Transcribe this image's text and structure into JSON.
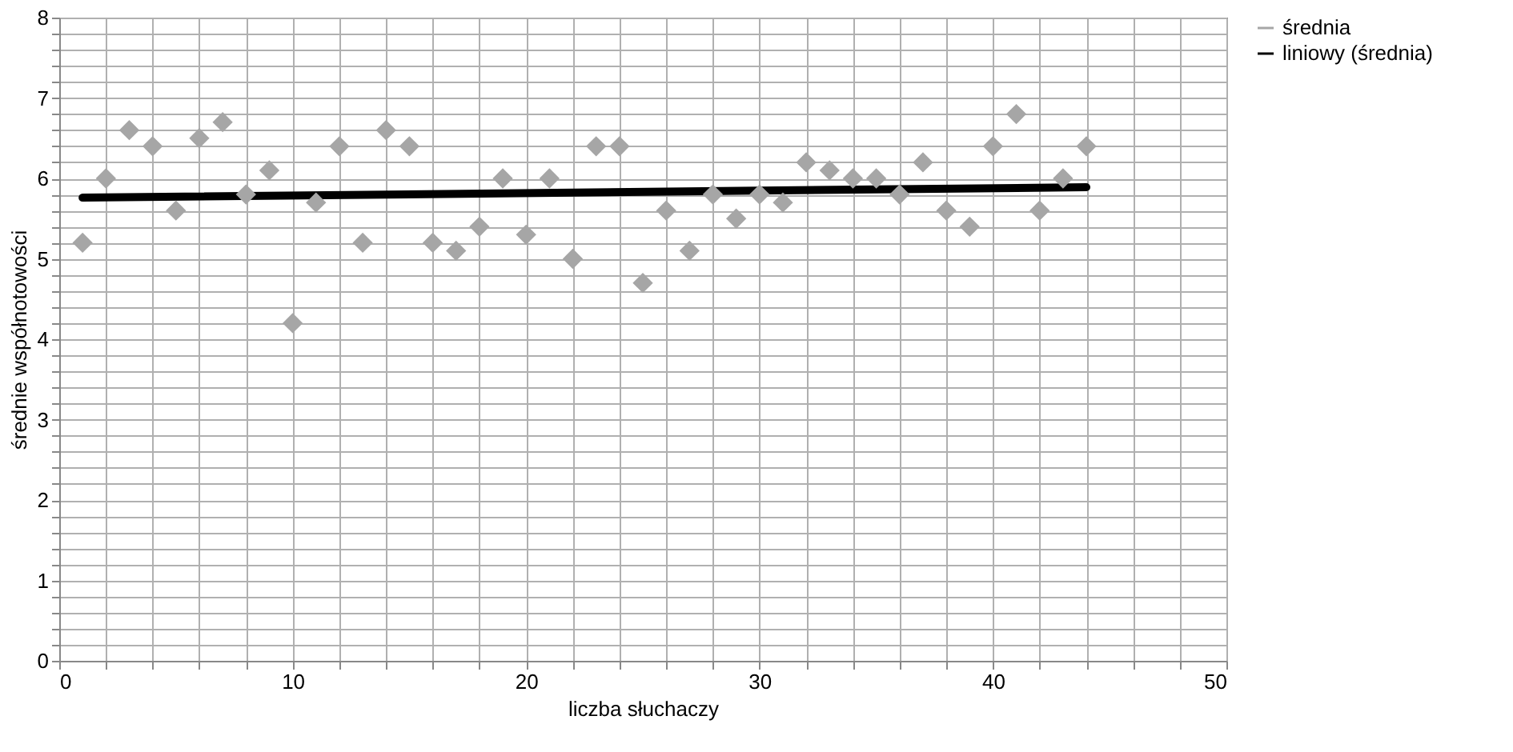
{
  "chart_data": {
    "type": "scatter",
    "xlabel": "liczba słuchaczy",
    "ylabel": "średnie współnotowości",
    "xlim": [
      0,
      50
    ],
    "ylim": [
      0,
      8
    ],
    "xticks": [
      0,
      {
        "value": 2,
        "label": null
      },
      {
        "value": 4,
        "label": null
      },
      {
        "value": 6,
        "label": null
      },
      {
        "value": 8,
        "label": null
      },
      10,
      {
        "value": 12,
        "label": null
      },
      {
        "value": 14,
        "label": null
      },
      {
        "value": 16,
        "label": null
      },
      {
        "value": 18,
        "label": null
      },
      20,
      {
        "value": 22,
        "label": null
      },
      {
        "value": 24,
        "label": null
      },
      {
        "value": 26,
        "label": null
      },
      {
        "value": 28,
        "label": null
      },
      30,
      {
        "value": 32,
        "label": null
      },
      {
        "value": 34,
        "label": null
      },
      {
        "value": 36,
        "label": null
      },
      {
        "value": 38,
        "label": null
      },
      40,
      {
        "value": 42,
        "label": null
      },
      {
        "value": 44,
        "label": null
      },
      {
        "value": 46,
        "label": null
      },
      {
        "value": 48,
        "label": null
      },
      50
    ],
    "yticks": [
      0,
      {
        "value": 0.2,
        "label": null
      },
      {
        "value": 0.4,
        "label": null
      },
      {
        "value": 0.6,
        "label": null
      },
      {
        "value": 0.8,
        "label": null
      },
      1,
      {
        "value": 1.2,
        "label": null
      },
      {
        "value": 1.4,
        "label": null
      },
      {
        "value": 1.6,
        "label": null
      },
      {
        "value": 1.8,
        "label": null
      },
      2,
      {
        "value": 2.2,
        "label": null
      },
      {
        "value": 2.4,
        "label": null
      },
      {
        "value": 2.6,
        "label": null
      },
      {
        "value": 2.8,
        "label": null
      },
      3,
      {
        "value": 3.2,
        "label": null
      },
      {
        "value": 3.4,
        "label": null
      },
      {
        "value": 3.6,
        "label": null
      },
      {
        "value": 3.8,
        "label": null
      },
      4,
      {
        "value": 4.2,
        "label": null
      },
      {
        "value": 4.4,
        "label": null
      },
      {
        "value": 4.6,
        "label": null
      },
      {
        "value": 4.8,
        "label": null
      },
      5,
      {
        "value": 5.2,
        "label": null
      },
      {
        "value": 5.4,
        "label": null
      },
      {
        "value": 5.6,
        "label": null
      },
      {
        "value": 5.8,
        "label": null
      },
      6,
      {
        "value": 6.2,
        "label": null
      },
      {
        "value": 6.4,
        "label": null
      },
      {
        "value": 6.6,
        "label": null
      },
      {
        "value": 6.8,
        "label": null
      },
      7,
      {
        "value": 7.2,
        "label": null
      },
      {
        "value": 7.4,
        "label": null
      },
      {
        "value": 7.6,
        "label": null
      },
      {
        "value": 7.8,
        "label": null
      },
      8
    ],
    "grid": true,
    "legend": "right",
    "marker": "diamond",
    "x": [
      1,
      2,
      3,
      4,
      5,
      6,
      7,
      8,
      9,
      10,
      11,
      12,
      13,
      14,
      15,
      16,
      17,
      18,
      19,
      20,
      21,
      22,
      23,
      24,
      25,
      26,
      27,
      28,
      29,
      30,
      31,
      32,
      33,
      34,
      35,
      36,
      37,
      38,
      39,
      40,
      41,
      42,
      43,
      44
    ],
    "series": [
      {
        "name": "średnia",
        "color": "#a6a6a6",
        "values": [
          5.2,
          6.0,
          6.6,
          6.4,
          5.6,
          6.5,
          6.7,
          5.8,
          6.1,
          4.2,
          5.7,
          6.4,
          5.2,
          6.6,
          6.4,
          5.2,
          5.1,
          5.4,
          6.0,
          5.3,
          6.0,
          5.0,
          6.4,
          6.4,
          4.7,
          5.6,
          5.1,
          5.8,
          5.5,
          5.8,
          5.7,
          6.2,
          6.1,
          6.0,
          6.0,
          5.8,
          6.2,
          5.6,
          5.4,
          6.4,
          6.8,
          5.6,
          6.0,
          6.4
        ]
      },
      {
        "name": "liniowy (średnia)",
        "type": "line",
        "color": "#000000",
        "x": [
          1,
          44
        ],
        "values": [
          5.76,
          5.89
        ],
        "marker": "none",
        "line_style": "solid"
      }
    ]
  }
}
